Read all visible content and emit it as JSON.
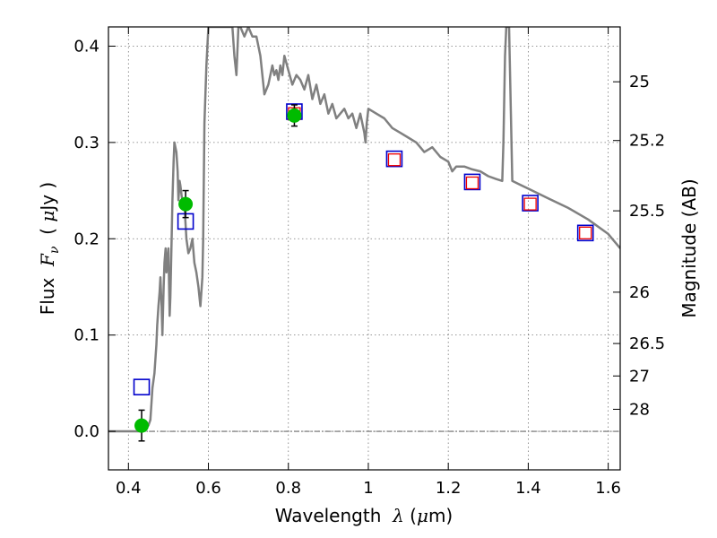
{
  "chart_data": {
    "type": "scatter",
    "xlabel_parts": [
      "Wavelength  ",
      "λ",
      " (",
      "μ",
      "m)"
    ],
    "ylabel_parts": [
      "Flux  ",
      "F",
      "ν",
      "  ( ",
      "μ",
      "Jy )"
    ],
    "y2label": "Magnitude (AB)",
    "xlim": [
      0.35,
      1.63
    ],
    "ylim": [
      -0.04,
      0.42
    ],
    "grid": true,
    "x_ticks": [
      {
        "v": 0.4,
        "label": "0.4"
      },
      {
        "v": 0.6,
        "label": "0.6"
      },
      {
        "v": 0.8,
        "label": "0.8"
      },
      {
        "v": 1.0,
        "label": "1"
      },
      {
        "v": 1.2,
        "label": "1.2"
      },
      {
        "v": 1.4,
        "label": "1.4"
      },
      {
        "v": 1.6,
        "label": "1.6"
      }
    ],
    "y_ticks": [
      {
        "v": 0.0,
        "label": "0.0"
      },
      {
        "v": 0.1,
        "label": "0.1"
      },
      {
        "v": 0.2,
        "label": "0.2"
      },
      {
        "v": 0.3,
        "label": "0.3"
      },
      {
        "v": 0.4,
        "label": "0.4"
      }
    ],
    "y2_ticks": [
      {
        "label": "25",
        "flux": 0.363
      },
      {
        "label": "25.2",
        "flux": 0.302
      },
      {
        "label": "25.5",
        "flux": 0.229
      },
      {
        "label": "26",
        "flux": 0.1445
      },
      {
        "label": "26.5",
        "flux": 0.0912
      },
      {
        "label": "27",
        "flux": 0.0575
      },
      {
        "label": "28",
        "flux": 0.0229
      }
    ],
    "zero_line": 0.0,
    "sed_model": {
      "color": "#808080",
      "x": [
        0.35,
        0.43,
        0.435,
        0.44,
        0.445,
        0.45,
        0.455,
        0.46,
        0.465,
        0.47,
        0.472,
        0.475,
        0.478,
        0.48,
        0.483,
        0.485,
        0.488,
        0.49,
        0.493,
        0.495,
        0.498,
        0.5,
        0.503,
        0.505,
        0.508,
        0.51,
        0.513,
        0.515,
        0.52,
        0.523,
        0.525,
        0.528,
        0.53,
        0.533,
        0.535,
        0.54,
        0.545,
        0.55,
        0.555,
        0.56,
        0.565,
        0.57,
        0.575,
        0.58,
        0.585,
        0.587,
        0.59,
        0.595,
        0.6,
        0.61,
        0.63,
        0.65,
        0.66,
        0.665,
        0.67,
        0.675,
        0.68,
        0.69,
        0.7,
        0.71,
        0.72,
        0.73,
        0.74,
        0.75,
        0.76,
        0.765,
        0.77,
        0.775,
        0.78,
        0.785,
        0.79,
        0.8,
        0.81,
        0.82,
        0.83,
        0.84,
        0.85,
        0.86,
        0.87,
        0.88,
        0.89,
        0.9,
        0.91,
        0.92,
        0.93,
        0.94,
        0.95,
        0.96,
        0.97,
        0.98,
        0.99,
        0.993,
        0.996,
        1.0,
        1.02,
        1.04,
        1.06,
        1.08,
        1.1,
        1.12,
        1.14,
        1.16,
        1.18,
        1.2,
        1.21,
        1.22,
        1.24,
        1.26,
        1.28,
        1.3,
        1.32,
        1.335,
        1.338,
        1.342,
        1.345,
        1.348,
        1.352,
        1.36,
        1.38,
        1.4,
        1.45,
        1.5,
        1.55,
        1.6,
        1.63
      ],
      "y": [
        0.0,
        0.0,
        0.003,
        0.004,
        0.005,
        0.006,
        0.012,
        0.045,
        0.06,
        0.09,
        0.11,
        0.13,
        0.145,
        0.16,
        0.13,
        0.1,
        0.15,
        0.175,
        0.19,
        0.165,
        0.18,
        0.19,
        0.12,
        0.14,
        0.2,
        0.24,
        0.28,
        0.3,
        0.29,
        0.27,
        0.24,
        0.26,
        0.255,
        0.245,
        0.24,
        0.235,
        0.2,
        0.185,
        0.19,
        0.2,
        0.175,
        0.165,
        0.15,
        0.13,
        0.16,
        0.2,
        0.32,
        0.38,
        0.42,
        0.42,
        0.42,
        0.42,
        0.42,
        0.39,
        0.37,
        0.42,
        0.42,
        0.41,
        0.42,
        0.41,
        0.41,
        0.39,
        0.35,
        0.36,
        0.38,
        0.37,
        0.375,
        0.365,
        0.38,
        0.37,
        0.39,
        0.375,
        0.36,
        0.37,
        0.365,
        0.355,
        0.37,
        0.345,
        0.36,
        0.34,
        0.35,
        0.33,
        0.34,
        0.325,
        0.33,
        0.335,
        0.325,
        0.33,
        0.315,
        0.33,
        0.31,
        0.3,
        0.32,
        0.335,
        0.33,
        0.325,
        0.315,
        0.31,
        0.305,
        0.3,
        0.29,
        0.295,
        0.285,
        0.28,
        0.27,
        0.275,
        0.275,
        0.272,
        0.27,
        0.265,
        0.262,
        0.26,
        0.3,
        0.39,
        0.42,
        0.42,
        0.42,
        0.26,
        0.256,
        0.252,
        0.242,
        0.232,
        0.22,
        0.205,
        0.19
      ]
    },
    "series": [
      {
        "marker": "square-open",
        "color": "#0000cc",
        "x": [
          0.433,
          0.543,
          0.815,
          1.065,
          1.26,
          1.405,
          1.543
        ],
        "y": [
          0.046,
          0.218,
          0.332,
          0.283,
          0.259,
          0.237,
          0.206
        ]
      },
      {
        "marker": "square-open",
        "color": "#ee0000",
        "x": [
          0.815,
          1.065,
          1.26,
          1.405,
          1.543
        ],
        "y": [
          0.33,
          0.282,
          0.258,
          0.236,
          0.206
        ]
      },
      {
        "marker": "circle-filled",
        "color": "#00bb00",
        "x": [
          0.433,
          0.543,
          0.815
        ],
        "y": [
          0.006,
          0.236,
          0.328
        ],
        "yerr": [
          0.016,
          0.014,
          0.011
        ]
      }
    ]
  }
}
